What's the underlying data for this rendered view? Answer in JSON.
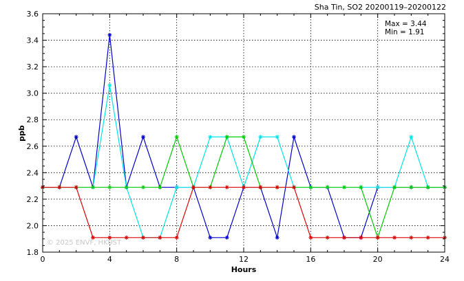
{
  "chart_data": {
    "type": "line",
    "title": "Sha Tin, SO2 20200119–20200122",
    "xlabel": "Hours",
    "ylabel": "ppb",
    "xlim": [
      0,
      24
    ],
    "ylim": [
      1.8,
      3.6
    ],
    "x_ticks": [
      0,
      4,
      8,
      12,
      16,
      20,
      24
    ],
    "y_ticks": [
      1.8,
      2.0,
      2.2,
      2.4,
      2.6,
      2.8,
      3.0,
      3.2,
      3.4,
      3.6
    ],
    "grid": true,
    "annotations": {
      "max": "Max = 3.44",
      "min": "Min = 1.91"
    },
    "watermark": "© 2025  ENVF, HKUST",
    "x": [
      0,
      1,
      2,
      3,
      4,
      5,
      6,
      7,
      8,
      9,
      10,
      11,
      12,
      13,
      14,
      15,
      16,
      17,
      18,
      19,
      20,
      21,
      22,
      23,
      24
    ],
    "series": [
      {
        "color": "#0000cc",
        "values": [
          2.29,
          2.29,
          2.67,
          2.29,
          3.44,
          2.29,
          2.67,
          2.29,
          2.29,
          2.29,
          1.91,
          1.91,
          2.29,
          2.29,
          1.91,
          2.67,
          2.29,
          2.29,
          1.91,
          1.91,
          2.29,
          2.29,
          2.29,
          2.29,
          2.29
        ]
      },
      {
        "color": "#00e5e5",
        "values": [
          2.29,
          2.29,
          2.29,
          2.29,
          3.06,
          2.29,
          1.91,
          1.91,
          2.29,
          2.29,
          2.67,
          2.67,
          2.29,
          2.67,
          2.67,
          2.29,
          2.29,
          2.29,
          2.29,
          2.29,
          2.29,
          2.29,
          2.67,
          2.29,
          2.29
        ]
      },
      {
        "color": "#00cc00",
        "values": [
          2.29,
          2.29,
          2.29,
          2.29,
          2.29,
          2.29,
          2.29,
          2.29,
          2.67,
          2.29,
          2.29,
          2.67,
          2.67,
          2.29,
          2.29,
          2.29,
          2.29,
          2.29,
          2.29,
          2.29,
          1.91,
          2.29,
          2.29,
          2.29,
          2.29
        ]
      },
      {
        "color": "#dd0000",
        "values": [
          2.29,
          2.29,
          2.29,
          1.91,
          1.91,
          1.91,
          1.91,
          1.91,
          1.91,
          2.29,
          2.29,
          2.29,
          2.29,
          2.29,
          2.29,
          2.29,
          1.91,
          1.91,
          1.91,
          1.91,
          1.91,
          1.91,
          1.91,
          1.91,
          1.91
        ]
      }
    ]
  }
}
